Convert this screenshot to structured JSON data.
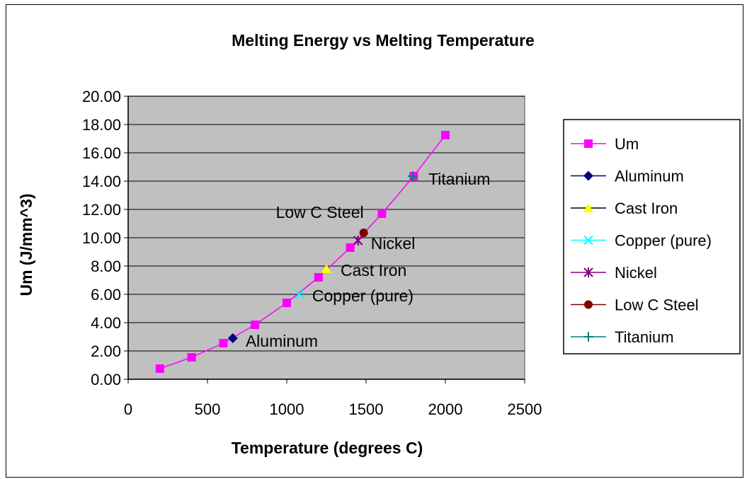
{
  "chart_data": {
    "type": "scatter",
    "title": "Melting Energy vs Melting Temperature",
    "xlabel": "Temperature (degrees C)",
    "ylabel": "Um (J/mm^3)",
    "xlim": [
      0,
      2500
    ],
    "ylim": [
      0,
      20
    ],
    "xticks": [
      "0",
      "500",
      "1000",
      "1500",
      "2000",
      "2500"
    ],
    "yticks": [
      "0.00",
      "2.00",
      "4.00",
      "6.00",
      "8.00",
      "10.00",
      "12.00",
      "14.00",
      "16.00",
      "18.00",
      "20.00"
    ],
    "grid": true,
    "legend_position": "right",
    "plot_background": "#c0c0c0",
    "series": [
      {
        "name": "Um",
        "color": "#ff00ff",
        "marker": "square",
        "line": true,
        "x": [
          200,
          400,
          600,
          800,
          1000,
          1200,
          1400,
          1600,
          1800,
          2000
        ],
        "y": [
          0.75,
          1.55,
          2.55,
          3.85,
          5.4,
          7.2,
          9.3,
          11.7,
          14.35,
          17.25
        ]
      },
      {
        "name": "Aluminum",
        "color": "#000080",
        "marker": "diamond",
        "line": false,
        "x": [
          660
        ],
        "y": [
          2.9
        ],
        "label": "Aluminum"
      },
      {
        "name": "Cast Iron",
        "color": "#ffff00",
        "marker": "triangle",
        "line": false,
        "x": [
          1250
        ],
        "y": [
          7.8
        ],
        "label": "Cast Iron"
      },
      {
        "name": "Copper (pure)",
        "color": "#00ffff",
        "marker": "x",
        "line": false,
        "x": [
          1080
        ],
        "y": [
          6.0
        ],
        "label": "Copper (pure)"
      },
      {
        "name": "Nickel",
        "color": "#800080",
        "marker": "star",
        "line": false,
        "x": [
          1450
        ],
        "y": [
          9.8
        ],
        "label": "Nickel"
      },
      {
        "name": "Low C Steel",
        "color": "#800000",
        "marker": "circle",
        "line": false,
        "x": [
          1485
        ],
        "y": [
          10.35
        ],
        "label": "Low C Steel"
      },
      {
        "name": "Titanium",
        "color": "#008080",
        "marker": "plus",
        "line": false,
        "x": [
          1795
        ],
        "y": [
          14.35
        ],
        "label": "Titanium"
      }
    ]
  }
}
